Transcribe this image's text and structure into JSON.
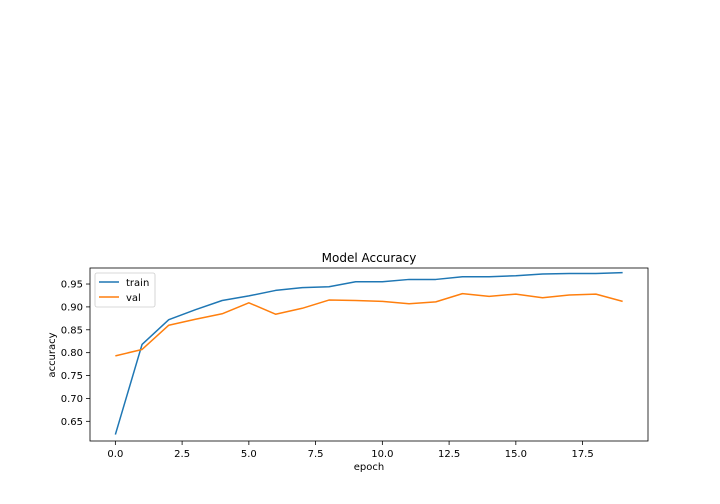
{
  "chart_data": {
    "type": "line",
    "title": "Model Accuracy",
    "xlabel": "epoch",
    "ylabel": "accuracy",
    "x": [
      0,
      1,
      2,
      3,
      4,
      5,
      6,
      7,
      8,
      9,
      10,
      11,
      12,
      13,
      14,
      15,
      16,
      17,
      18,
      19
    ],
    "xlim": [
      -0.95,
      19.95
    ],
    "ylim": [
      0.607,
      0.985
    ],
    "xticks": [
      0.0,
      2.5,
      5.0,
      7.5,
      10.0,
      12.5,
      15.0,
      17.5
    ],
    "xtick_labels": [
      "0.0",
      "2.5",
      "5.0",
      "7.5",
      "10.0",
      "12.5",
      "15.0",
      "17.5"
    ],
    "yticks": [
      0.65,
      0.7,
      0.75,
      0.8,
      0.85,
      0.9,
      0.95
    ],
    "ytick_labels": [
      "0.65",
      "0.70",
      "0.75",
      "0.80",
      "0.85",
      "0.90",
      "0.95"
    ],
    "grid": false,
    "legend_position": "upper-left",
    "series": [
      {
        "name": "train",
        "color": "#1f77b4",
        "values": [
          0.621,
          0.818,
          0.872,
          0.894,
          0.914,
          0.924,
          0.936,
          0.942,
          0.944,
          0.955,
          0.955,
          0.96,
          0.96,
          0.966,
          0.966,
          0.968,
          0.972,
          0.973,
          0.973,
          0.975
        ]
      },
      {
        "name": "val",
        "color": "#ff7f0e",
        "values": [
          0.793,
          0.807,
          0.86,
          0.873,
          0.885,
          0.909,
          0.884,
          0.897,
          0.915,
          0.914,
          0.912,
          0.907,
          0.911,
          0.929,
          0.923,
          0.928,
          0.92,
          0.926,
          0.928,
          0.912
        ]
      }
    ]
  }
}
